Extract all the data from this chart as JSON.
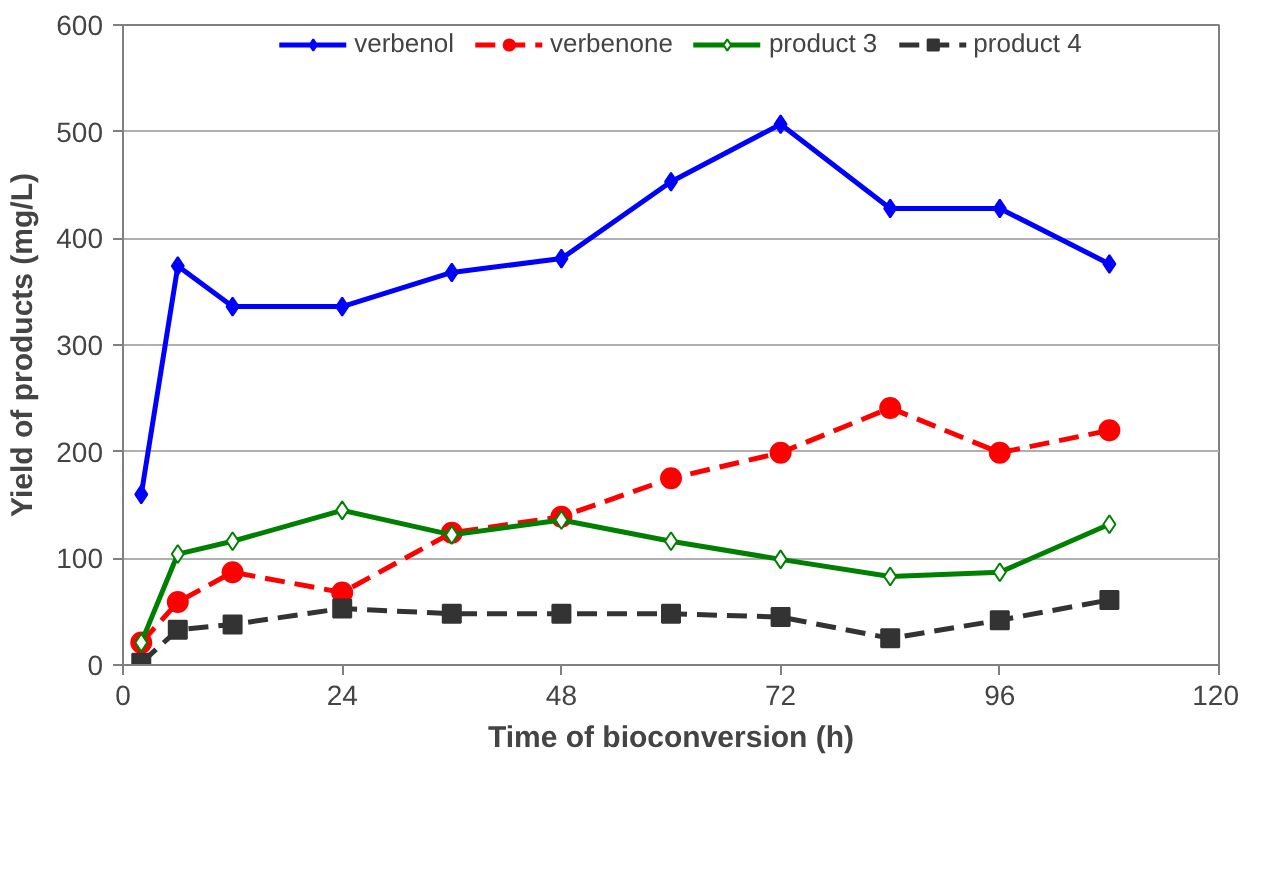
{
  "chart_data": {
    "type": "line",
    "xlabel": "Time of bioconversion (h)",
    "ylabel": "Yield of products (mg/L)",
    "x": [
      2,
      6,
      12,
      24,
      36,
      48,
      60,
      72,
      84,
      96,
      108
    ],
    "xlim": [
      0,
      120
    ],
    "xticks": [
      0,
      24,
      48,
      72,
      96,
      120
    ],
    "ylim": [
      0,
      600
    ],
    "yticks": [
      0,
      100,
      200,
      300,
      400,
      500,
      600
    ],
    "grid": "y",
    "legend": "top",
    "series": [
      {
        "name": "verbenol",
        "color": "#0000ff",
        "marker": "diamond",
        "line_style": "solid",
        "values": [
          160,
          374,
          336,
          336,
          368,
          381,
          453,
          507,
          428,
          428,
          376
        ]
      },
      {
        "name": "verbenone",
        "color": "#ff0000",
        "marker": "circle",
        "line_style": "dashed",
        "values": [
          21,
          59,
          87,
          68,
          124,
          139,
          175,
          199,
          241,
          199,
          220
        ]
      },
      {
        "name": "product 3",
        "color": "#008000",
        "marker": "diamond",
        "line_style": "solid",
        "values": [
          21,
          104,
          116,
          145,
          122,
          136,
          116,
          99,
          83,
          87,
          132
        ]
      },
      {
        "name": "product 4",
        "color": "#333333",
        "marker": "square",
        "line_style": "dashed",
        "values": [
          2,
          33,
          38,
          53,
          48,
          48,
          48,
          45,
          25,
          42,
          61
        ]
      }
    ]
  }
}
